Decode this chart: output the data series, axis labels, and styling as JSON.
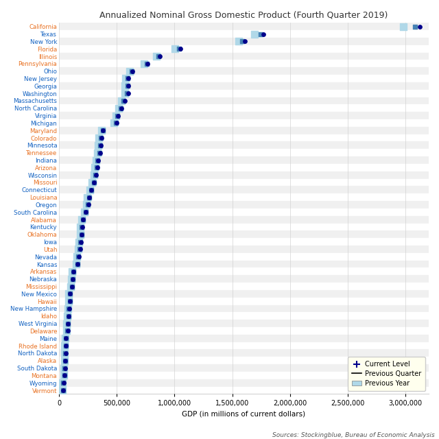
{
  "title": "Annualized Nominal Gross Domestic Product (Fourth Quarter 2019)",
  "xlabel": "GDP (in millions of current dollars)",
  "source": "Sources: Stockingblue, Bureau of Economic Analysis",
  "states": [
    "California",
    "Texas",
    "New York",
    "Florida",
    "Illinois",
    "Pennsylvania",
    "Ohio",
    "New Jersey",
    "Georgia",
    "Washington",
    "Massachusetts",
    "North Carolina",
    "Virginia",
    "Michigan",
    "Maryland",
    "Colorado",
    "Minnesota",
    "Tennessee",
    "Indiana",
    "Arizona",
    "Wisconsin",
    "Missouri",
    "Connecticut",
    "Louisiana",
    "Oregon",
    "South Carolina",
    "Alabama",
    "Kentucky",
    "Oklahoma",
    "Iowa",
    "Utah",
    "Nevada",
    "Kansas",
    "Arkansas",
    "Nebraska",
    "Mississippi",
    "New Mexico",
    "Hawaii",
    "New Hampshire",
    "Idaho",
    "West Virginia",
    "Delaware",
    "Maine",
    "Rhode Island",
    "North Dakota",
    "Alaska",
    "South Dakota",
    "Montana",
    "Wyoming",
    "Vermont"
  ],
  "current": [
    3120000,
    1772000,
    1607000,
    1050000,
    875000,
    768000,
    637000,
    601000,
    600000,
    598000,
    567000,
    540000,
    513000,
    500000,
    382000,
    366000,
    362000,
    357000,
    340000,
    330000,
    320000,
    305000,
    280000,
    263000,
    255000,
    234000,
    210000,
    202000,
    198000,
    190000,
    182000,
    170000,
    161000,
    125000,
    121000,
    112000,
    97000,
    95000,
    87000,
    82000,
    78000,
    75000,
    62000,
    60000,
    58000,
    54000,
    51000,
    50000,
    39000,
    34000
  ],
  "prev_quarter": [
    3080000,
    1748000,
    1585000,
    1040000,
    862000,
    760000,
    629000,
    594000,
    592000,
    589000,
    560000,
    533000,
    506000,
    492000,
    379000,
    360000,
    356000,
    350000,
    334000,
    324000,
    315000,
    300000,
    276000,
    259000,
    250000,
    229000,
    207000,
    198000,
    194000,
    186000,
    178000,
    167000,
    158000,
    122000,
    118000,
    110000,
    95000,
    93000,
    85000,
    80000,
    76000,
    73000,
    61000,
    58000,
    56000,
    52000,
    50000,
    49000,
    38000,
    33000
  ],
  "prev_year": [
    2978000,
    1692000,
    1556000,
    1004000,
    843000,
    738000,
    612000,
    577000,
    572000,
    569000,
    542000,
    517000,
    490000,
    477000,
    366000,
    344000,
    340000,
    334000,
    319000,
    309000,
    300000,
    286000,
    265000,
    246000,
    238000,
    218000,
    195000,
    186000,
    182000,
    174000,
    165000,
    154000,
    147000,
    111000,
    108000,
    100000,
    85000,
    84000,
    76000,
    71000,
    67000,
    65000,
    53000,
    50000,
    48000,
    45000,
    43000,
    42000,
    32000,
    27000
  ],
  "color_current": "#00008B",
  "color_prev_quarter": "#4682B4",
  "color_prev_year": "#B0D8E8",
  "color_title": "#333333",
  "color_odd_row": "#F0F0F0",
  "color_even_row": "#FFFFFF",
  "orange_states": [
    "California",
    "Florida",
    "Illinois",
    "Pennsylvania",
    "Maryland",
    "Colorado",
    "Tennessee",
    "Arizona",
    "Missouri",
    "Louisiana",
    "Alabama",
    "Oklahoma",
    "Utah",
    "Arkansas",
    "Mississippi",
    "Hawaii",
    "Idaho",
    "Delaware",
    "Rhode Island",
    "Alaska",
    "Montana",
    "Vermont"
  ],
  "xlim": [
    0,
    3200000
  ],
  "xticks": [
    0,
    500000,
    1000000,
    1500000,
    2000000,
    2500000,
    3000000
  ],
  "xtick_labels": [
    "0",
    "500,000",
    "1,000,000",
    "1,500,000",
    "2,000,000",
    "2,500,000",
    "3,000,000"
  ]
}
